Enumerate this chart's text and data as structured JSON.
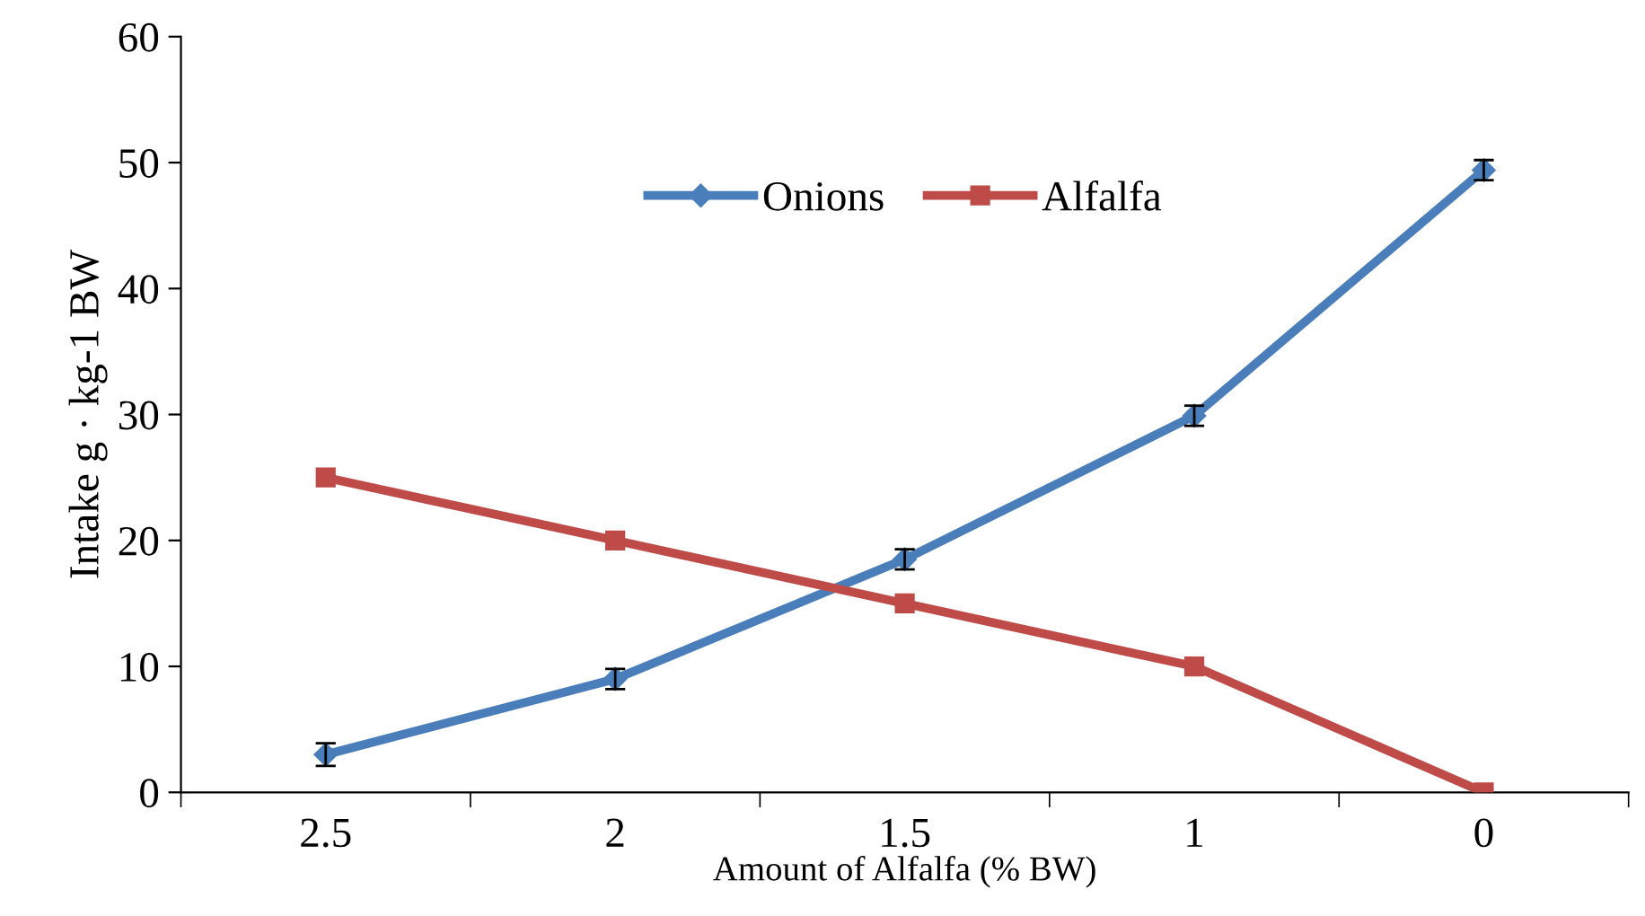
{
  "chart_data": {
    "type": "line",
    "xlabel": "Amount of Alfalfa (% BW)",
    "ylabel": "Intake g · kg-1 BW",
    "categories": [
      "2.5",
      "2",
      "1.5",
      "1",
      "0"
    ],
    "series": [
      {
        "name": "Onions",
        "color": "#4a7ebb",
        "marker": "diamond",
        "values": [
          3.0,
          9.0,
          18.5,
          29.9,
          49.4
        ],
        "errors": [
          0.9,
          0.8,
          0.8,
          0.8,
          0.8
        ]
      },
      {
        "name": "Alfalfa",
        "color": "#be4b48",
        "marker": "square",
        "values": [
          25,
          20,
          15,
          10,
          0
        ]
      }
    ],
    "ylim": [
      0,
      60
    ],
    "yticks": [
      0,
      10,
      20,
      30,
      40,
      50,
      60
    ],
    "grid": false,
    "legend": "top"
  }
}
